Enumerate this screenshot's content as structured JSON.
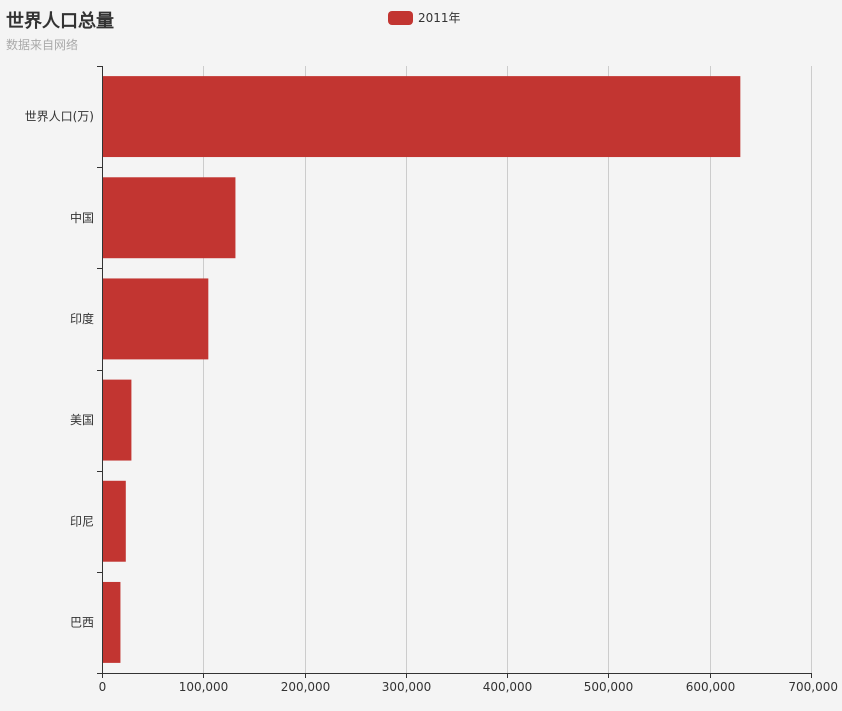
{
  "chart": {
    "title": "世界人口总量",
    "subtitle": "数据来自网络"
  },
  "legend": {
    "label": "2011年",
    "color": "#c23531"
  },
  "chart_data": {
    "type": "bar",
    "orientation": "horizontal",
    "title": "世界人口总量",
    "subtitle": "数据来自网络",
    "categories": [
      "世界人口(万)",
      "中国",
      "印度",
      "美国",
      "印尼",
      "巴西"
    ],
    "series": [
      {
        "name": "2011年",
        "values": [
          630230,
          131744,
          104970,
          29034,
          23489,
          18203
        ],
        "color": "#c23531"
      }
    ],
    "x_axis": {
      "min": 0,
      "max": 700000,
      "ticks": [
        0,
        100000,
        200000,
        300000,
        400000,
        500000,
        600000,
        700000
      ],
      "tick_labels": [
        "0",
        "100,000",
        "200,000",
        "300,000",
        "400,000",
        "500,000",
        "600,000",
        "700,000"
      ]
    },
    "grid": true,
    "legend_position": "top-center"
  }
}
